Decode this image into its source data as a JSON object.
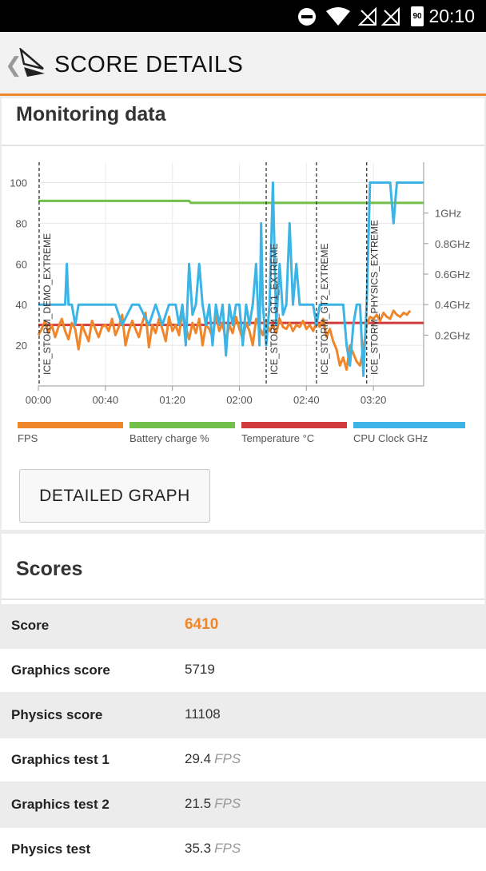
{
  "status_bar": {
    "time": "20:10",
    "battery_level": "90"
  },
  "app_bar": {
    "title": "SCORE DETAILS"
  },
  "monitoring": {
    "title": "Monitoring data",
    "detailed_graph_label": "DETAILED GRAPH"
  },
  "chart_data": {
    "type": "line",
    "x_ticks": [
      "00:00",
      "00:40",
      "01:20",
      "02:00",
      "02:40",
      "03:20"
    ],
    "y_left_ticks": [
      "20",
      "40",
      "60",
      "80",
      "100"
    ],
    "y_right_ticks": [
      "0.2GHz",
      "0.4GHz",
      "0.6GHz",
      "0.8GHz",
      "1GHz"
    ],
    "y_left_range": [
      0,
      110
    ],
    "x_range_seconds": [
      0,
      230
    ],
    "test_markers": [
      {
        "label": "ICE_STORM_DEMO_EXTREME",
        "x": 0
      },
      {
        "label": "ICE_STORM_GT1_EXTREME",
        "x": 136
      },
      {
        "label": "ICE_STORM_GT2_EXTREME",
        "x": 166
      },
      {
        "label": "ICE_STORM_PHYSICS_EXTREME",
        "x": 196
      }
    ],
    "legend": [
      {
        "name": "FPS",
        "color": "#f0862a"
      },
      {
        "name": "Battery charge %",
        "color": "#72c04a"
      },
      {
        "name": "Temperature °C",
        "color": "#d23b3b"
      },
      {
        "name": "CPU Clock GHz",
        "color": "#3cb4e6"
      }
    ],
    "series": [
      {
        "name": "Battery charge %",
        "x": [
          0,
          90,
          91,
          230
        ],
        "y": [
          91,
          91,
          90,
          90
        ]
      },
      {
        "name": "Temperature °C",
        "x": [
          0,
          100,
          101,
          180,
          181,
          230
        ],
        "y": [
          30,
          30,
          31,
          31,
          31,
          31
        ]
      },
      {
        "name": "FPS",
        "x": [
          0,
          2,
          4,
          6,
          8,
          10,
          12,
          14,
          16,
          18,
          20,
          22,
          24,
          26,
          28,
          30,
          32,
          34,
          36,
          38,
          40,
          42,
          44,
          46,
          48,
          50,
          52,
          54,
          56,
          58,
          60,
          62,
          64,
          66,
          68,
          70,
          72,
          74,
          76,
          78,
          80,
          82,
          84,
          86,
          88,
          90,
          92,
          94,
          96,
          98,
          100,
          102,
          104,
          106,
          108,
          110,
          112,
          114,
          116,
          118,
          120,
          122,
          124,
          126,
          128,
          130,
          132,
          134,
          136,
          138,
          140,
          142,
          144,
          146,
          148,
          150,
          152,
          154,
          156,
          158,
          160,
          162,
          164,
          166,
          168,
          170,
          172,
          174,
          176,
          178,
          180,
          182,
          184,
          186,
          188,
          190,
          192,
          194,
          196,
          198,
          200,
          202,
          204,
          206,
          208,
          210,
          212,
          214,
          216,
          218,
          220,
          222
        ],
        "y": [
          25,
          28,
          32,
          26,
          30,
          24,
          29,
          33,
          27,
          23,
          31,
          28,
          18,
          30,
          26,
          22,
          32,
          28,
          24,
          29,
          30,
          27,
          33,
          25,
          29,
          35,
          20,
          27,
          32,
          28,
          24,
          31,
          36,
          19,
          30,
          26,
          33,
          28,
          22,
          34,
          27,
          30,
          25,
          37,
          29,
          23,
          31,
          26,
          33,
          20,
          30,
          28,
          24,
          35,
          27,
          31,
          22,
          30,
          26,
          34,
          28,
          23,
          31,
          27,
          20,
          33,
          29,
          25,
          32,
          27,
          30,
          26,
          33,
          29,
          28,
          31,
          27,
          30,
          29,
          32,
          28,
          30,
          27,
          31,
          29,
          33,
          24,
          28,
          22,
          18,
          10,
          14,
          8,
          20,
          16,
          12,
          10,
          18,
          30,
          34,
          33,
          35,
          32,
          36,
          34,
          33,
          37,
          35,
          34,
          36,
          35,
          37
        ]
      },
      {
        "name": "CPU Clock GHz",
        "x": [
          0,
          8,
          16,
          17,
          18,
          20,
          22,
          24,
          30,
          36,
          40,
          46,
          50,
          56,
          60,
          66,
          70,
          74,
          78,
          82,
          84,
          86,
          88,
          90,
          92,
          94,
          96,
          98,
          100,
          102,
          104,
          106,
          108,
          110,
          112,
          114,
          116,
          118,
          120,
          122,
          124,
          126,
          128,
          130,
          132,
          133,
          134,
          136,
          138,
          140,
          142,
          144,
          146,
          148,
          150,
          152,
          154,
          156,
          160,
          164,
          166,
          168,
          170,
          174,
          178,
          182,
          184,
          186,
          188,
          190,
          192,
          194,
          196,
          198,
          200,
          210,
          212,
          214,
          230
        ],
        "y": [
          40,
          40,
          40,
          60,
          40,
          40,
          30,
          40,
          40,
          40,
          40,
          40,
          30,
          40,
          40,
          30,
          40,
          30,
          40,
          40,
          30,
          40,
          20,
          60,
          35,
          40,
          60,
          40,
          30,
          40,
          20,
          40,
          30,
          40,
          15,
          40,
          30,
          40,
          40,
          20,
          40,
          30,
          40,
          60,
          20,
          80,
          40,
          20,
          40,
          100,
          30,
          60,
          35,
          40,
          80,
          40,
          60,
          40,
          40,
          40,
          30,
          40,
          40,
          40,
          40,
          40,
          20,
          10,
          30,
          40,
          40,
          5,
          40,
          100,
          100,
          100,
          80,
          100,
          100
        ]
      }
    ]
  },
  "scores": {
    "title": "Scores",
    "rows": [
      {
        "name": "Score",
        "value": "6410",
        "unit": ""
      },
      {
        "name": "Graphics score",
        "value": "5719",
        "unit": ""
      },
      {
        "name": "Physics score",
        "value": "11108",
        "unit": ""
      },
      {
        "name": "Graphics test 1",
        "value": "29.4",
        "unit": "FPS"
      },
      {
        "name": "Graphics test 2",
        "value": "21.5",
        "unit": "FPS"
      },
      {
        "name": "Physics test",
        "value": "35.3",
        "unit": "FPS"
      }
    ]
  }
}
